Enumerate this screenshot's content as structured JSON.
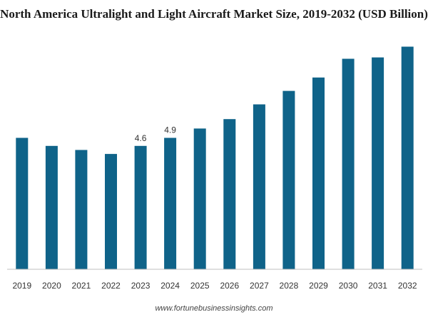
{
  "chart_data": {
    "type": "bar",
    "title": "North America Ultralight and Light Aircraft Market Size, 2019-2032 (USD Billion)",
    "source": "www.fortunebusinessinsights.com",
    "categories": [
      "2019",
      "2020",
      "2021",
      "2022",
      "2023",
      "2024",
      "2025",
      "2026",
      "2027",
      "2028",
      "2029",
      "2030",
      "2031",
      "2032"
    ],
    "values": [
      4.9,
      4.6,
      4.45,
      4.3,
      4.6,
      4.9,
      5.25,
      5.6,
      6.15,
      6.65,
      7.15,
      7.85,
      7.9,
      8.3
    ],
    "data_labels": {
      "2023": "4.6",
      "2024": "4.9"
    },
    "ylim": [
      0,
      8.5
    ],
    "grid": false,
    "colors": {
      "bar": "#0f6389",
      "axis": "#bfbfbf",
      "tick_text": "#333333"
    }
  }
}
